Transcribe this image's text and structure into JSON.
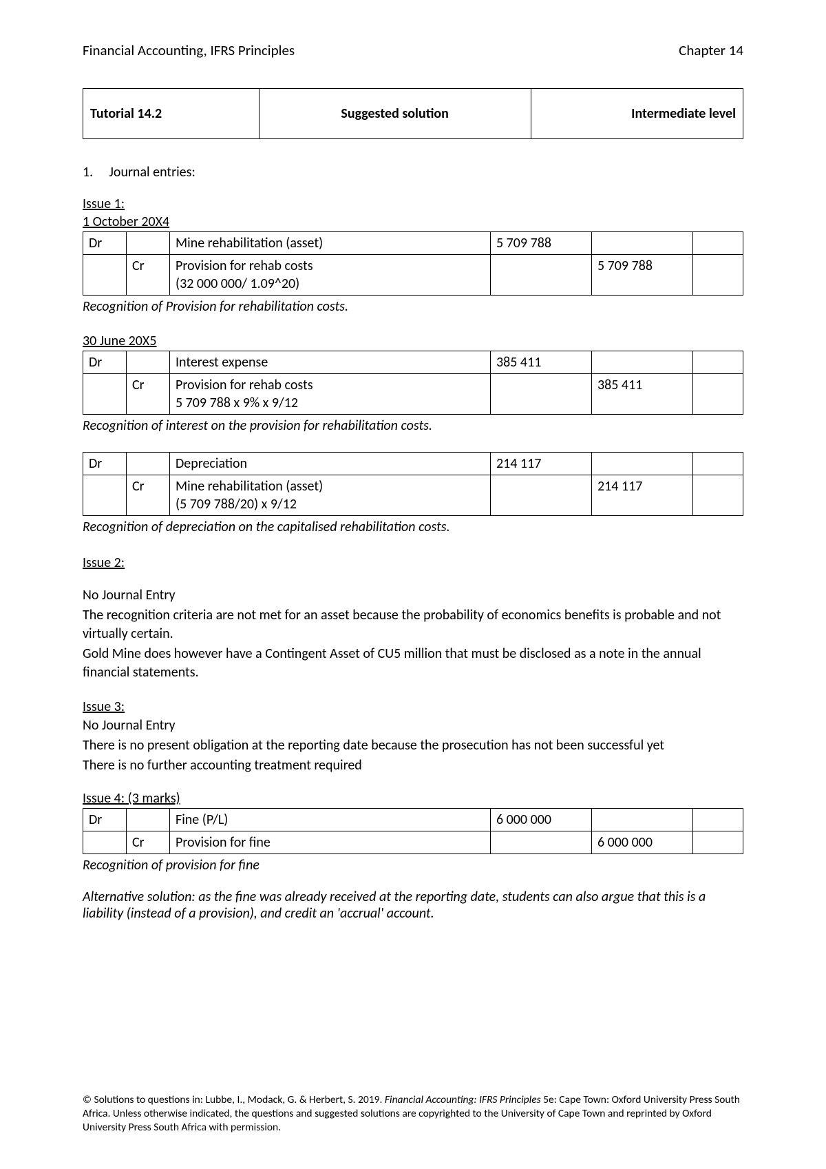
{
  "header": {
    "left": "Financial Accounting, IFRS Principles",
    "right": "Chapter 14"
  },
  "titlebox": {
    "left": "Tutorial 14.2",
    "mid": "Suggested solution",
    "right": "Intermediate level"
  },
  "section1": {
    "num": "1.",
    "label": "Journal entries:"
  },
  "issue1": {
    "label": "Issue 1:",
    "date1": "1 October 20X4",
    "t1": {
      "r1": {
        "dr": "Dr",
        "cr": "",
        "desc": "Mine rehabilitation (asset)",
        "d": "5 709 788",
        "c": ""
      },
      "r2": {
        "dr": "",
        "cr": "Cr",
        "desc": "Provision for rehab costs\n(32 000 000/ 1.09^20)",
        "d": "",
        "c": "5 709 788"
      }
    },
    "note1": "Recognition of Provision for rehabilitation costs.",
    "date2": "30 June 20X5",
    "t2": {
      "r1": {
        "dr": "Dr",
        "cr": "",
        "desc": "Interest expense",
        "d": "385 411",
        "c": ""
      },
      "r2": {
        "dr": "",
        "cr": "Cr",
        "desc": "Provision for rehab costs\n5 709 788 x 9% x 9/12",
        "d": "",
        "c": "385 411"
      }
    },
    "note2": "Recognition of interest on the provision for rehabilitation costs.",
    "t3": {
      "r1": {
        "dr": "Dr",
        "cr": "",
        "desc": "Depreciation",
        "d": "214 117",
        "c": ""
      },
      "r2": {
        "dr": "",
        "cr": "Cr",
        "desc": "Mine rehabilitation (asset)\n(5 709 788/20) x 9/12",
        "d": "",
        "c": "214 117"
      }
    },
    "note3": "Recognition of depreciation on the capitalised rehabilitation costs."
  },
  "issue2": {
    "label": "Issue 2:",
    "line1": "No Journal Entry",
    "line2": "The recognition criteria are not met for an asset because the probability of economics benefits is probable and not virtually certain.",
    "line3": "Gold Mine does however have a Contingent Asset of CU5 million that must be disclosed as a note in the annual financial statements."
  },
  "issue3": {
    "label": "Issue 3:",
    "line1": "No Journal Entry",
    "line2": "There is no present obligation at the reporting date because the prosecution has not been successful yet",
    "line3": "There is no further accounting treatment required"
  },
  "issue4": {
    "label": "Issue 4: (3 marks)",
    "t1": {
      "r1": {
        "dr": "Dr",
        "cr": "",
        "desc": "Fine (P/L)",
        "d": "6 000 000",
        "c": ""
      },
      "r2": {
        "dr": "",
        "cr": "Cr",
        "desc": "Provision for fine",
        "d": "",
        "c": "6 000 000"
      }
    },
    "note1": "Recognition of provision for fine",
    "alt": "Alternative solution: as the fine was already received at the reporting date, students can also argue that this is a liability (instead of a provision), and credit an 'accrual' account."
  },
  "footer": {
    "pre": "© Solutions to questions in: Lubbe, I., Modack, G. & Herbert, S. 2019.  ",
    "ital": "Financial Accounting: IFRS Principles ",
    "post": " 5e: Cape Town: Oxford University Press South Africa. Unless otherwise indicated, the questions and suggested solutions are copyrighted to the University of Cape Town and reprinted by Oxford University Press South Africa with permission."
  }
}
